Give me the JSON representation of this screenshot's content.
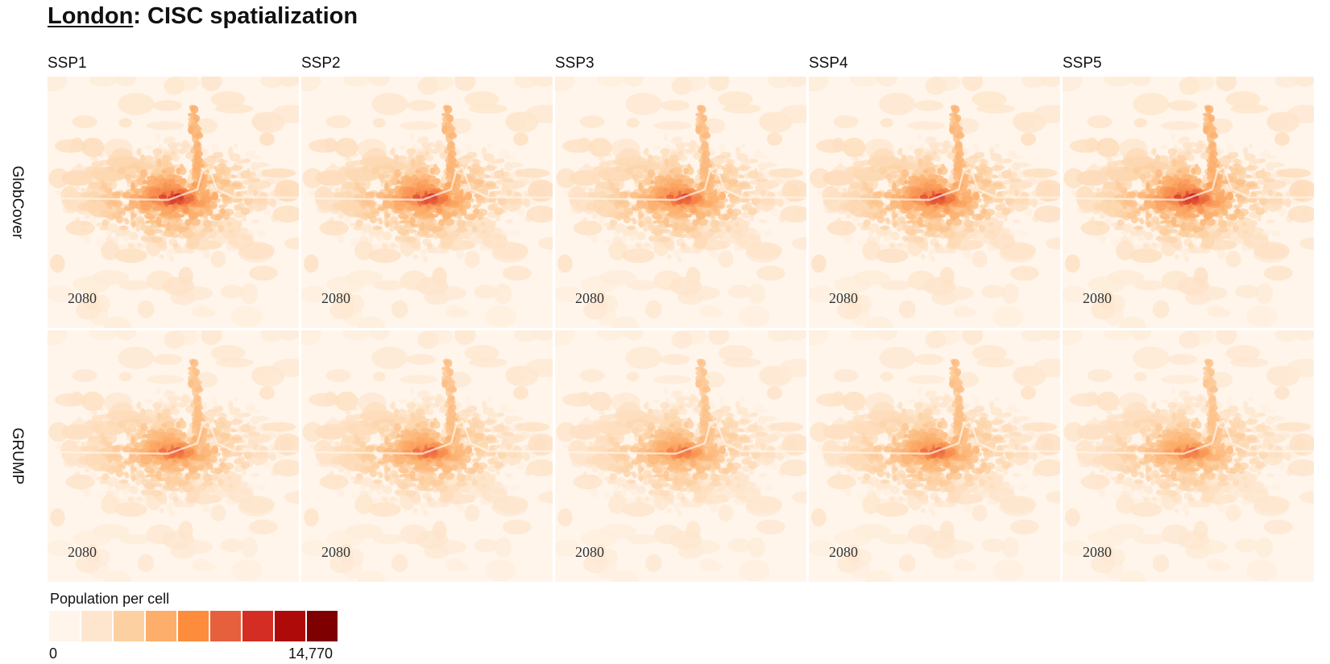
{
  "title": {
    "city": "London",
    "rest": ": CISC spatialization"
  },
  "columns": [
    "SSP1",
    "SSP2",
    "SSP3",
    "SSP4",
    "SSP5"
  ],
  "rows": [
    {
      "label": "GlobCover",
      "intensity": [
        1.0,
        0.95,
        0.9,
        0.95,
        1.0
      ]
    },
    {
      "label": "GRUMP",
      "intensity": [
        0.85,
        0.85,
        0.8,
        0.85,
        0.8
      ]
    }
  ],
  "panel_year": "2080",
  "legend": {
    "title": "Population per cell",
    "min_label": "0",
    "max_label": "14,770",
    "colors": [
      "#fff5eb",
      "#fee6ce",
      "#fdd0a2",
      "#fdae6b",
      "#fd8d3c",
      "#e6603e",
      "#d42d24",
      "#ae0a0a",
      "#7f0000"
    ]
  }
}
